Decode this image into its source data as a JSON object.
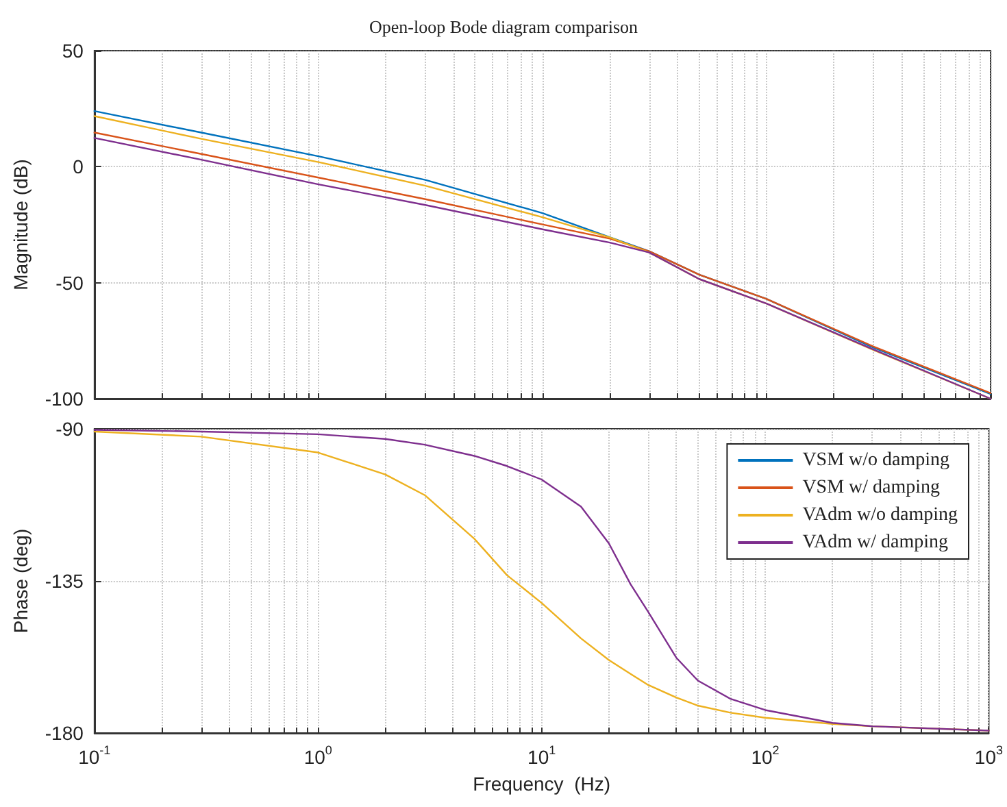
{
  "chart_data": [
    {
      "type": "line",
      "title": "Open-loop Bode diagram comparison",
      "ylabel": "Magnitude (dB)",
      "log": "x",
      "grid": true,
      "tick_labels": "y",
      "x": [
        0.1,
        0.3,
        1,
        3,
        10,
        20,
        30,
        50,
        100,
        300,
        1000
      ],
      "xlim": [
        0.1,
        1000
      ],
      "xticks": [
        {
          "value": 0.1,
          "label": null
        },
        {
          "value": 0.2,
          "label": null
        },
        {
          "value": 0.3,
          "label": null
        },
        {
          "value": 0.4,
          "label": null
        },
        {
          "value": 0.5,
          "label": null
        },
        {
          "value": 0.6,
          "label": null
        },
        {
          "value": 0.7,
          "label": null
        },
        {
          "value": 0.8,
          "label": null
        },
        {
          "value": 0.9,
          "label": null
        },
        {
          "value": 1,
          "label": null
        },
        {
          "value": 2,
          "label": null
        },
        {
          "value": 3,
          "label": null
        },
        {
          "value": 4,
          "label": null
        },
        {
          "value": 5,
          "label": null
        },
        {
          "value": 6,
          "label": null
        },
        {
          "value": 7,
          "label": null
        },
        {
          "value": 8,
          "label": null
        },
        {
          "value": 9,
          "label": null
        },
        {
          "value": 10,
          "label": null
        },
        {
          "value": 20,
          "label": null
        },
        {
          "value": 30,
          "label": null
        },
        {
          "value": 40,
          "label": null
        },
        {
          "value": 50,
          "label": null
        },
        {
          "value": 60,
          "label": null
        },
        {
          "value": 70,
          "label": null
        },
        {
          "value": 80,
          "label": null
        },
        {
          "value": 90,
          "label": null
        },
        {
          "value": 100,
          "label": null
        },
        {
          "value": 200,
          "label": null
        },
        {
          "value": 300,
          "label": null
        },
        {
          "value": 400,
          "label": null
        },
        {
          "value": 500,
          "label": null
        },
        {
          "value": 600,
          "label": null
        },
        {
          "value": 700,
          "label": null
        },
        {
          "value": 800,
          "label": null
        },
        {
          "value": 900,
          "label": null
        },
        {
          "value": 1000,
          "label": null
        }
      ],
      "ylim": [
        -100,
        50
      ],
      "yticks": [
        50,
        0,
        -50,
        -100
      ],
      "series": [
        {
          "color": "#0072bd",
          "values": [
            24,
            14.7,
            4.5,
            -5.7,
            -20,
            -30.4,
            -36.5,
            -46.5,
            -57,
            -78,
            -98
          ]
        },
        {
          "color": "#d95319",
          "values": [
            14.7,
            5.5,
            -4.7,
            -14,
            -24.9,
            -31,
            -36.5,
            -46.5,
            -57,
            -77.5,
            -97.6
          ]
        },
        {
          "color": "#edb120",
          "values": [
            21.8,
            12,
            2,
            -8.2,
            -21.8,
            -30.5,
            -37,
            -48.4,
            -59,
            -79,
            -100
          ]
        },
        {
          "color": "#7e2f8e",
          "values": [
            12.4,
            3,
            -7.6,
            -16.5,
            -27,
            -32.7,
            -37,
            -48.4,
            -59,
            -78.8,
            -100
          ]
        }
      ]
    },
    {
      "type": "line",
      "xlabel": "Frequency  (Hz)",
      "ylabel": "Phase (deg)",
      "log": "x",
      "grid": true,
      "legend": "top right",
      "x": [
        0.1,
        0.3,
        1,
        2,
        3,
        5,
        7,
        10,
        15,
        20,
        25,
        30,
        40,
        50,
        70,
        100,
        200,
        300,
        1000
      ],
      "xlim": [
        0.1,
        1000
      ],
      "xticks": [
        {
          "value": 0.1,
          "label": "10$^{-1}$"
        },
        {
          "value": 0.2,
          "label": null
        },
        {
          "value": 0.3,
          "label": null
        },
        {
          "value": 0.4,
          "label": null
        },
        {
          "value": 0.5,
          "label": null
        },
        {
          "value": 0.6,
          "label": null
        },
        {
          "value": 0.7,
          "label": null
        },
        {
          "value": 0.8,
          "label": null
        },
        {
          "value": 0.9,
          "label": null
        },
        {
          "value": 1,
          "label": "10$^{0}$"
        },
        {
          "value": 2,
          "label": null
        },
        {
          "value": 3,
          "label": null
        },
        {
          "value": 4,
          "label": null
        },
        {
          "value": 5,
          "label": null
        },
        {
          "value": 6,
          "label": null
        },
        {
          "value": 7,
          "label": null
        },
        {
          "value": 8,
          "label": null
        },
        {
          "value": 9,
          "label": null
        },
        {
          "value": 10,
          "label": "10$^{1}$"
        },
        {
          "value": 20,
          "label": null
        },
        {
          "value": 30,
          "label": null
        },
        {
          "value": 40,
          "label": null
        },
        {
          "value": 50,
          "label": null
        },
        {
          "value": 60,
          "label": null
        },
        {
          "value": 70,
          "label": null
        },
        {
          "value": 80,
          "label": null
        },
        {
          "value": 90,
          "label": null
        },
        {
          "value": 100,
          "label": "10$^{2}$"
        },
        {
          "value": 200,
          "label": null
        },
        {
          "value": 300,
          "label": null
        },
        {
          "value": 400,
          "label": null
        },
        {
          "value": 500,
          "label": null
        },
        {
          "value": 600,
          "label": null
        },
        {
          "value": 700,
          "label": null
        },
        {
          "value": 800,
          "label": null
        },
        {
          "value": 900,
          "label": null
        },
        {
          "value": 1000,
          "label": "10$^{3}$"
        }
      ],
      "ylim": [
        -180,
        -90
      ],
      "yticks": [
        -90,
        -135,
        -180
      ],
      "series": [
        {
          "name": "VSM w/o damping",
          "color": "#0072bd",
          "values": [
            null,
            null,
            null,
            null,
            null,
            null,
            null,
            null,
            null,
            null,
            null,
            null,
            null,
            null,
            null,
            null,
            null,
            null,
            null
          ]
        },
        {
          "name": "VSM w/ damping",
          "color": "#d95319",
          "values": [
            null,
            null,
            null,
            null,
            null,
            null,
            null,
            null,
            null,
            null,
            null,
            null,
            null,
            null,
            null,
            null,
            null,
            null,
            null
          ]
        },
        {
          "name": "VAdm w/o damping",
          "color": "#edb120",
          "values": [
            -90.8,
            -92.3,
            -97,
            -103.5,
            -109.6,
            -122.5,
            -133.3,
            -141.5,
            -152,
            -158.4,
            -162.5,
            -165.8,
            -169.5,
            -171.9,
            -174,
            -175.5,
            -177.3,
            -178,
            -179.3
          ]
        },
        {
          "name": "VAdm w/ damping",
          "color": "#7e2f8e",
          "values": [
            -90.3,
            -90.8,
            -91.6,
            -93,
            -94.7,
            -98,
            -101,
            -105,
            -113,
            -123.9,
            -136,
            -144.2,
            -157.7,
            -164.5,
            -169.9,
            -173.2,
            -177,
            -178,
            -179.3
          ]
        }
      ]
    }
  ]
}
